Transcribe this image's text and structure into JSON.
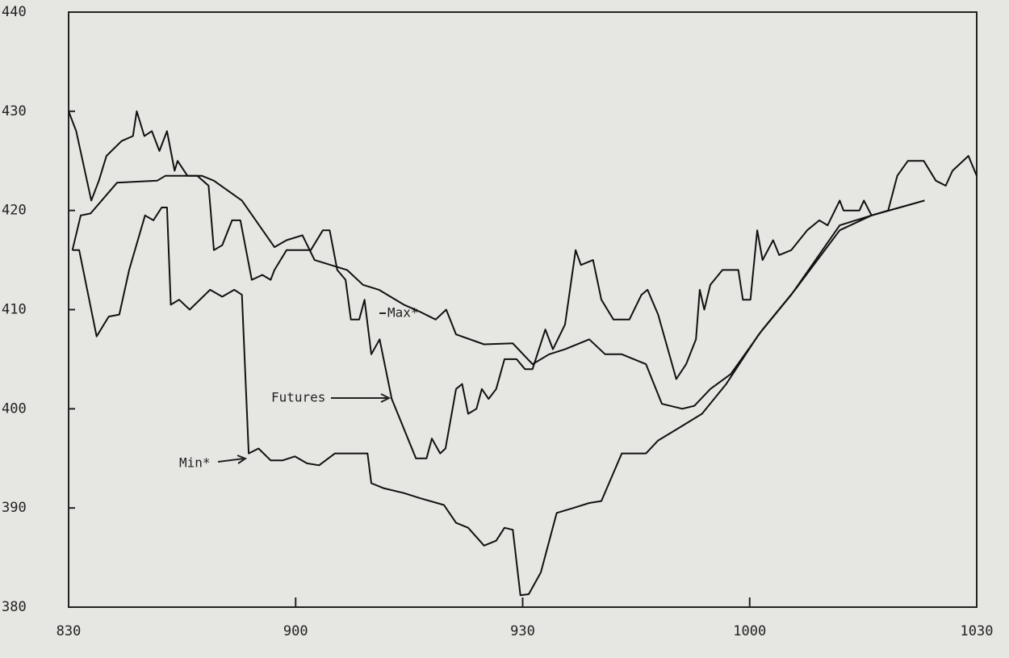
{
  "chart_data": {
    "type": "line",
    "xlim": [
      510,
      630
    ],
    "xticks": [
      {
        "value": 510,
        "label": "830"
      },
      {
        "value": 540,
        "label": "900"
      },
      {
        "value": 570,
        "label": "930"
      },
      {
        "value": 600,
        "label": "1000"
      },
      {
        "value": 630,
        "label": "1030"
      }
    ],
    "ylim": [
      380,
      440
    ],
    "yticks": [
      380,
      390,
      400,
      410,
      420,
      430,
      440
    ],
    "color": "#111111",
    "series": [
      {
        "name": "Futures",
        "color": "#111111",
        "x": [
          510,
          511,
          513,
          514,
          515,
          517,
          518.5,
          519,
          520,
          521,
          522,
          523,
          524,
          524.4,
          525.7,
          527,
          528.5,
          529.2,
          530.3,
          531.6,
          532.7,
          534.2,
          535.6,
          536.7,
          537.2,
          538.8,
          542,
          543.6,
          544.5,
          545.5,
          546.6,
          547.3,
          548.4,
          549.1,
          550,
          551.1,
          552.7,
          554.3,
          555.9,
          557.3,
          558,
          559.1,
          559.8,
          561.2,
          562,
          562.8,
          563.9,
          564.6,
          565.5,
          566.5,
          567.6,
          569.2,
          570.3,
          571.3,
          573,
          574,
          575.6,
          577,
          577.7,
          579.3,
          580.4,
          582,
          584.1,
          585.7,
          586.5,
          587.9,
          590.3,
          591.6,
          592.9,
          593.4,
          594,
          594.8,
          596.4,
          598.5,
          599.1,
          600.1,
          601,
          601.7,
          603.1,
          603.9,
          605.5,
          607.6,
          609.2,
          610.3,
          611.9,
          612.4,
          614.5,
          615.1,
          616.1,
          618.3,
          619.5,
          620.9,
          623,
          624.6,
          625.9,
          626.8,
          628.9,
          630
        ],
        "values": [
          430,
          428,
          421,
          423,
          425.5,
          427,
          427.5,
          430,
          427.5,
          428,
          426,
          428,
          424,
          425,
          423.5,
          423.5,
          422.5,
          416,
          416.5,
          419,
          419,
          413,
          413.5,
          413,
          414,
          416,
          416,
          418,
          418,
          414,
          413,
          409,
          409,
          411,
          405.5,
          407,
          401,
          398,
          395,
          395,
          397,
          395.5,
          396,
          402,
          402.5,
          399.5,
          400,
          402,
          401,
          402,
          405,
          405,
          404,
          404,
          408,
          406,
          408.5,
          416,
          414.5,
          415,
          411,
          409,
          409,
          411.5,
          412,
          409.5,
          403,
          404.5,
          407,
          412,
          410,
          412.5,
          414,
          414,
          411,
          411,
          418,
          415,
          417,
          415.5,
          416,
          418,
          419,
          418.5,
          421,
          420,
          420,
          421,
          419.5,
          420,
          423.5,
          425,
          425,
          423,
          422.5,
          424,
          425.5,
          423.5
        ]
      },
      {
        "name": "Max*",
        "color": "#111111",
        "x": [
          510.5,
          511.6,
          512.9,
          516.4,
          521.7,
          522.8,
          527.6,
          529.2,
          532.9,
          537.2,
          538.8,
          540.9,
          542.5,
          546.8,
          548.9,
          551.0,
          554.3,
          556.4,
          558.5,
          559.9,
          561.2,
          564.9,
          568.7,
          571.3,
          573.5,
          575.6,
          578.8,
          580.9,
          583.1,
          586.3,
          588.4,
          591.1,
          592.7,
          594.8,
          597.5,
          601.7,
          606.0,
          611.9,
          616.1,
          623.1
        ],
        "values": [
          416,
          419.5,
          419.7,
          422.8,
          423,
          423.5,
          423.5,
          423,
          421,
          416.3,
          417,
          417.5,
          415,
          414,
          412.5,
          412,
          410.5,
          409.8,
          409,
          410,
          407.5,
          406.5,
          406.6,
          404.5,
          405.5,
          406,
          407,
          405.5,
          405.5,
          404.5,
          400.5,
          400,
          400.3,
          402,
          403.5,
          408,
          412,
          418,
          419.5,
          421
        ]
      },
      {
        "name": "Min*",
        "color": "#111111",
        "x": [
          510.5,
          511.4,
          513.7,
          515.3,
          516.7,
          518.0,
          520.1,
          521.2,
          522.3,
          523.0,
          523.5,
          524.6,
          526.0,
          528.7,
          530.3,
          531.9,
          532.9,
          533.8,
          535.1,
          536.7,
          538.3,
          539.9,
          541.5,
          543.1,
          545.2,
          549.5,
          550.0,
          551.6,
          554.3,
          556.4,
          559.6,
          561.2,
          562.8,
          564.9,
          566.5,
          567.6,
          568.7,
          569.7,
          570.8,
          572.4,
          574.5,
          576.7,
          578.8,
          580.4,
          583.1,
          586.3,
          587.9,
          590.5,
          593.7,
          596.9,
          601.2,
          605.5,
          611.9,
          616.1,
          623.1
        ],
        "values": [
          416,
          416,
          407.3,
          409.3,
          409.5,
          414,
          419.5,
          419,
          420.3,
          420.3,
          410.5,
          411,
          410,
          412,
          411.3,
          412,
          411.5,
          395.5,
          396,
          394.8,
          394.8,
          395.2,
          394.5,
          394.3,
          395.5,
          395.5,
          392.5,
          392,
          391.5,
          391,
          390.3,
          388.5,
          388,
          386.2,
          386.7,
          388,
          387.8,
          381.2,
          381.3,
          383.5,
          389.5,
          390,
          390.5,
          390.7,
          395.5,
          395.5,
          396.8,
          398,
          399.5,
          402.5,
          407.5,
          411.5,
          418.5,
          419.5,
          421
        ]
      }
    ]
  }
}
